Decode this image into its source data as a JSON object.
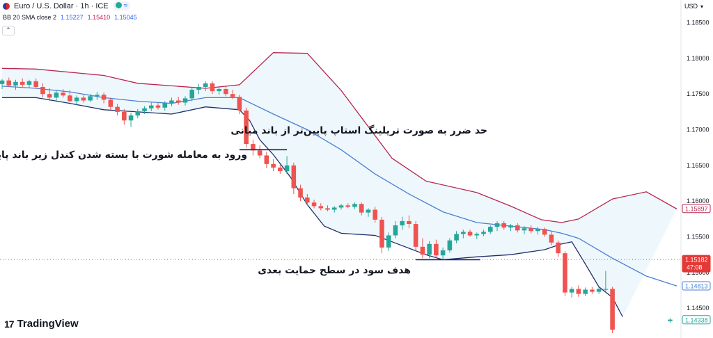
{
  "header": {
    "symbol_title": "Euro / U.S. Dollar · 1h · ICE",
    "indicator_label": "BB 20 SMA close 2",
    "indicator_values": [
      "1.15227",
      "1.15410",
      "1.15045"
    ]
  },
  "currency_label": "USD",
  "brand": "TradingView",
  "colors": {
    "upper_band": "#b8264f",
    "basis": "#4a7fd4",
    "lower_band": "#1f2f6b",
    "band_fill": "#eef7fb",
    "bull": "#26a69a",
    "bear": "#ef5350"
  },
  "annotations": {
    "stop_note": "حد ضرر به صورت تریلینگ استاپ پایین‌تر از باند میانی",
    "entry_note": "ورود به معامله شورت با بسته شدن کندل زیر باند پایینی",
    "target_note": "هدف سود در سطح حمایت بعدی"
  },
  "chart_data": {
    "type": "candlestick",
    "y_axis_ticks": [
      "1.18500",
      "1.18000",
      "1.17500",
      "1.17000",
      "1.16500",
      "1.16000",
      "1.15500",
      "1.15000",
      "1.14500"
    ],
    "ylim": [
      1.1418,
      1.1872
    ],
    "price_tags": [
      {
        "label": "1.15897",
        "value": 1.15897,
        "style": "upper"
      },
      {
        "label": "1.15182",
        "sublabel": "47:08",
        "value": 1.15182,
        "style": "current"
      },
      {
        "label": "1.14813",
        "value": 1.14813,
        "style": "basis"
      },
      {
        "label": "1.14338",
        "value": 1.14338,
        "style": "last"
      }
    ],
    "current_price_line": 1.15182,
    "entry_level": 1.1672,
    "target_level": 1.1518,
    "bands": {
      "upper": [
        [
          0,
          1.1786
        ],
        [
          10,
          1.1785
        ],
        [
          30,
          1.1776
        ],
        [
          40,
          1.1765
        ],
        [
          60,
          1.1758
        ],
        [
          70,
          1.1763
        ],
        [
          80,
          1.1808
        ],
        [
          90,
          1.1807
        ],
        [
          100,
          1.1755
        ],
        [
          115,
          1.166
        ],
        [
          125,
          1.1628
        ],
        [
          140,
          1.1612
        ],
        [
          150,
          1.1593
        ],
        [
          159,
          1.1574
        ],
        [
          165,
          1.157
        ],
        [
          170,
          1.1575
        ],
        [
          180,
          1.1603
        ],
        [
          190,
          1.1613
        ],
        [
          199,
          1.1589
        ]
      ],
      "basis": [
        [
          0,
          1.1761
        ],
        [
          10,
          1.1758
        ],
        [
          20,
          1.1753
        ],
        [
          30,
          1.1745
        ],
        [
          40,
          1.174
        ],
        [
          50,
          1.1737
        ],
        [
          60,
          1.1745
        ],
        [
          70,
          1.1745
        ],
        [
          80,
          1.1722
        ],
        [
          90,
          1.17
        ],
        [
          100,
          1.1672
        ],
        [
          110,
          1.1638
        ],
        [
          120,
          1.161
        ],
        [
          130,
          1.1585
        ],
        [
          140,
          1.157
        ],
        [
          150,
          1.1565
        ],
        [
          160,
          1.156
        ],
        [
          165,
          1.1555
        ],
        [
          170,
          1.1548
        ],
        [
          180,
          1.152
        ],
        [
          190,
          1.1495
        ],
        [
          199,
          1.1481
        ]
      ],
      "lower": [
        [
          0,
          1.1745
        ],
        [
          10,
          1.1745
        ],
        [
          20,
          1.1737
        ],
        [
          30,
          1.1728
        ],
        [
          40,
          1.1725
        ],
        [
          50,
          1.1722
        ],
        [
          60,
          1.1732
        ],
        [
          70,
          1.1728
        ],
        [
          73,
          1.1713
        ],
        [
          76,
          1.1686
        ],
        [
          80,
          1.1665
        ],
        [
          85,
          1.1634
        ],
        [
          90,
          1.1595
        ],
        [
          95,
          1.1565
        ],
        [
          100,
          1.1555
        ],
        [
          110,
          1.1552
        ],
        [
          115,
          1.1543
        ],
        [
          125,
          1.1525
        ],
        [
          130,
          1.1518
        ],
        [
          140,
          1.1522
        ],
        [
          150,
          1.1525
        ],
        [
          160,
          1.1532
        ],
        [
          165,
          1.154
        ],
        [
          168,
          1.1543
        ],
        [
          172,
          1.1512
        ],
        [
          176,
          1.148
        ],
        [
          180,
          1.1465
        ],
        [
          183,
          1.1438
        ]
      ]
    },
    "candles": [
      {
        "i": 0,
        "o": 1.1764,
        "h": 1.1771,
        "l": 1.1757,
        "c": 1.1769
      },
      {
        "i": 2,
        "o": 1.1769,
        "h": 1.1773,
        "l": 1.176,
        "c": 1.1762
      },
      {
        "i": 4,
        "o": 1.1762,
        "h": 1.177,
        "l": 1.1756,
        "c": 1.1767
      },
      {
        "i": 6,
        "o": 1.1767,
        "h": 1.1772,
        "l": 1.176,
        "c": 1.1763
      },
      {
        "i": 8,
        "o": 1.1763,
        "h": 1.177,
        "l": 1.1759,
        "c": 1.1768
      },
      {
        "i": 10,
        "o": 1.1768,
        "h": 1.1772,
        "l": 1.1758,
        "c": 1.176
      },
      {
        "i": 12,
        "o": 1.176,
        "h": 1.1765,
        "l": 1.1745,
        "c": 1.175
      },
      {
        "i": 14,
        "o": 1.175,
        "h": 1.1758,
        "l": 1.174,
        "c": 1.1745
      },
      {
        "i": 16,
        "o": 1.1745,
        "h": 1.1755,
        "l": 1.174,
        "c": 1.1752
      },
      {
        "i": 18,
        "o": 1.1752,
        "h": 1.1757,
        "l": 1.1745,
        "c": 1.1748
      },
      {
        "i": 20,
        "o": 1.1748,
        "h": 1.1756,
        "l": 1.1738,
        "c": 1.174
      },
      {
        "i": 22,
        "o": 1.174,
        "h": 1.1748,
        "l": 1.1734,
        "c": 1.1745
      },
      {
        "i": 24,
        "o": 1.1745,
        "h": 1.1748,
        "l": 1.1738,
        "c": 1.1741
      },
      {
        "i": 26,
        "o": 1.1741,
        "h": 1.175,
        "l": 1.1739,
        "c": 1.1747
      },
      {
        "i": 28,
        "o": 1.1747,
        "h": 1.1753,
        "l": 1.1742,
        "c": 1.1749
      },
      {
        "i": 30,
        "o": 1.1749,
        "h": 1.1752,
        "l": 1.1737,
        "c": 1.1742
      },
      {
        "i": 32,
        "o": 1.1742,
        "h": 1.1745,
        "l": 1.1728,
        "c": 1.1732
      },
      {
        "i": 34,
        "o": 1.1732,
        "h": 1.1736,
        "l": 1.172,
        "c": 1.1725
      },
      {
        "i": 36,
        "o": 1.1725,
        "h": 1.1729,
        "l": 1.1707,
        "c": 1.1713
      },
      {
        "i": 38,
        "o": 1.1713,
        "h": 1.1724,
        "l": 1.1704,
        "c": 1.172
      },
      {
        "i": 40,
        "o": 1.172,
        "h": 1.1729,
        "l": 1.1716,
        "c": 1.1726
      },
      {
        "i": 42,
        "o": 1.1726,
        "h": 1.1733,
        "l": 1.1722,
        "c": 1.173
      },
      {
        "i": 44,
        "o": 1.173,
        "h": 1.1738,
        "l": 1.1726,
        "c": 1.1734
      },
      {
        "i": 46,
        "o": 1.1734,
        "h": 1.1738,
        "l": 1.1728,
        "c": 1.1731
      },
      {
        "i": 48,
        "o": 1.1731,
        "h": 1.174,
        "l": 1.1727,
        "c": 1.1737
      },
      {
        "i": 50,
        "o": 1.1737,
        "h": 1.1745,
        "l": 1.1733,
        "c": 1.1741
      },
      {
        "i": 52,
        "o": 1.1741,
        "h": 1.1746,
        "l": 1.1735,
        "c": 1.1738
      },
      {
        "i": 54,
        "o": 1.1738,
        "h": 1.1747,
        "l": 1.1734,
        "c": 1.1744
      },
      {
        "i": 56,
        "o": 1.1744,
        "h": 1.176,
        "l": 1.174,
        "c": 1.1756
      },
      {
        "i": 58,
        "o": 1.1756,
        "h": 1.1764,
        "l": 1.175,
        "c": 1.176
      },
      {
        "i": 60,
        "o": 1.176,
        "h": 1.1768,
        "l": 1.1754,
        "c": 1.1765
      },
      {
        "i": 62,
        "o": 1.1765,
        "h": 1.1768,
        "l": 1.175,
        "c": 1.1754
      },
      {
        "i": 64,
        "o": 1.1754,
        "h": 1.176,
        "l": 1.1749,
        "c": 1.1757
      },
      {
        "i": 66,
        "o": 1.1757,
        "h": 1.1761,
        "l": 1.1747,
        "c": 1.175
      },
      {
        "i": 68,
        "o": 1.175,
        "h": 1.1756,
        "l": 1.1743,
        "c": 1.1746
      },
      {
        "i": 70,
        "o": 1.1746,
        "h": 1.1749,
        "l": 1.1722,
        "c": 1.1727
      },
      {
        "i": 72,
        "o": 1.1727,
        "h": 1.1731,
        "l": 1.1675,
        "c": 1.168
      },
      {
        "i": 74,
        "o": 1.168,
        "h": 1.1686,
        "l": 1.1664,
        "c": 1.1671
      },
      {
        "i": 76,
        "o": 1.1671,
        "h": 1.1678,
        "l": 1.166,
        "c": 1.1664
      },
      {
        "i": 78,
        "o": 1.1664,
        "h": 1.1669,
        "l": 1.1646,
        "c": 1.1652
      },
      {
        "i": 80,
        "o": 1.1652,
        "h": 1.1659,
        "l": 1.1642,
        "c": 1.1647
      },
      {
        "i": 82,
        "o": 1.1647,
        "h": 1.1651,
        "l": 1.1638,
        "c": 1.1642
      },
      {
        "i": 84,
        "o": 1.1642,
        "h": 1.1663,
        "l": 1.1638,
        "c": 1.165
      },
      {
        "i": 86,
        "o": 1.165,
        "h": 1.1654,
        "l": 1.161,
        "c": 1.1618
      },
      {
        "i": 88,
        "o": 1.1618,
        "h": 1.1623,
        "l": 1.16,
        "c": 1.1605
      },
      {
        "i": 90,
        "o": 1.1605,
        "h": 1.161,
        "l": 1.1594,
        "c": 1.1598
      },
      {
        "i": 92,
        "o": 1.1598,
        "h": 1.1602,
        "l": 1.159,
        "c": 1.1593
      },
      {
        "i": 94,
        "o": 1.1593,
        "h": 1.1597,
        "l": 1.1587,
        "c": 1.159
      },
      {
        "i": 96,
        "o": 1.159,
        "h": 1.1594,
        "l": 1.1586,
        "c": 1.1588
      },
      {
        "i": 98,
        "o": 1.1588,
        "h": 1.1593,
        "l": 1.1584,
        "c": 1.1591
      },
      {
        "i": 100,
        "o": 1.1591,
        "h": 1.1596,
        "l": 1.1588,
        "c": 1.1594
      },
      {
        "i": 102,
        "o": 1.1594,
        "h": 1.1597,
        "l": 1.159,
        "c": 1.1592
      },
      {
        "i": 104,
        "o": 1.1592,
        "h": 1.1598,
        "l": 1.1589,
        "c": 1.1596
      },
      {
        "i": 106,
        "o": 1.1596,
        "h": 1.1598,
        "l": 1.158,
        "c": 1.1584
      },
      {
        "i": 108,
        "o": 1.1584,
        "h": 1.159,
        "l": 1.1578,
        "c": 1.1588
      },
      {
        "i": 110,
        "o": 1.1588,
        "h": 1.1592,
        "l": 1.157,
        "c": 1.1574
      },
      {
        "i": 112,
        "o": 1.1574,
        "h": 1.1578,
        "l": 1.1527,
        "c": 1.1535
      },
      {
        "i": 114,
        "o": 1.1535,
        "h": 1.1556,
        "l": 1.153,
        "c": 1.1552
      },
      {
        "i": 116,
        "o": 1.1552,
        "h": 1.1572,
        "l": 1.1548,
        "c": 1.1566
      },
      {
        "i": 118,
        "o": 1.1566,
        "h": 1.1578,
        "l": 1.156,
        "c": 1.1572
      },
      {
        "i": 120,
        "o": 1.1572,
        "h": 1.158,
        "l": 1.1562,
        "c": 1.1568
      },
      {
        "i": 122,
        "o": 1.1568,
        "h": 1.1572,
        "l": 1.153,
        "c": 1.1536
      },
      {
        "i": 124,
        "o": 1.1536,
        "h": 1.1548,
        "l": 1.152,
        "c": 1.1525
      },
      {
        "i": 126,
        "o": 1.1525,
        "h": 1.1544,
        "l": 1.152,
        "c": 1.154
      },
      {
        "i": 128,
        "o": 1.154,
        "h": 1.1546,
        "l": 1.152,
        "c": 1.1524
      },
      {
        "i": 130,
        "o": 1.1524,
        "h": 1.1535,
        "l": 1.1519,
        "c": 1.1531
      },
      {
        "i": 132,
        "o": 1.1531,
        "h": 1.1548,
        "l": 1.1528,
        "c": 1.1545
      },
      {
        "i": 134,
        "o": 1.1545,
        "h": 1.1558,
        "l": 1.1541,
        "c": 1.1554
      },
      {
        "i": 136,
        "o": 1.1554,
        "h": 1.156,
        "l": 1.1548,
        "c": 1.1557
      },
      {
        "i": 138,
        "o": 1.1557,
        "h": 1.156,
        "l": 1.155,
        "c": 1.1552
      },
      {
        "i": 140,
        "o": 1.1552,
        "h": 1.1556,
        "l": 1.1547,
        "c": 1.1554
      },
      {
        "i": 142,
        "o": 1.1554,
        "h": 1.156,
        "l": 1.1551,
        "c": 1.1557
      },
      {
        "i": 144,
        "o": 1.1557,
        "h": 1.1566,
        "l": 1.1554,
        "c": 1.1564
      },
      {
        "i": 146,
        "o": 1.1564,
        "h": 1.1572,
        "l": 1.1558,
        "c": 1.1569
      },
      {
        "i": 148,
        "o": 1.1569,
        "h": 1.1572,
        "l": 1.156,
        "c": 1.1563
      },
      {
        "i": 150,
        "o": 1.1563,
        "h": 1.1568,
        "l": 1.1558,
        "c": 1.1566
      },
      {
        "i": 152,
        "o": 1.1566,
        "h": 1.1569,
        "l": 1.1556,
        "c": 1.1559
      },
      {
        "i": 154,
        "o": 1.1559,
        "h": 1.1565,
        "l": 1.1554,
        "c": 1.1562
      },
      {
        "i": 156,
        "o": 1.1562,
        "h": 1.1566,
        "l": 1.1555,
        "c": 1.1558
      },
      {
        "i": 158,
        "o": 1.1558,
        "h": 1.1564,
        "l": 1.1553,
        "c": 1.1561
      },
      {
        "i": 160,
        "o": 1.1561,
        "h": 1.1563,
        "l": 1.155,
        "c": 1.1553
      },
      {
        "i": 162,
        "o": 1.1553,
        "h": 1.1557,
        "l": 1.1538,
        "c": 1.1542
      },
      {
        "i": 164,
        "o": 1.1542,
        "h": 1.1545,
        "l": 1.1522,
        "c": 1.1527
      },
      {
        "i": 166,
        "o": 1.1527,
        "h": 1.153,
        "l": 1.1467,
        "c": 1.1472
      },
      {
        "i": 168,
        "o": 1.1472,
        "h": 1.148,
        "l": 1.1465,
        "c": 1.1477
      },
      {
        "i": 170,
        "o": 1.1477,
        "h": 1.1482,
        "l": 1.1466,
        "c": 1.147
      },
      {
        "i": 172,
        "o": 1.147,
        "h": 1.1479,
        "l": 1.1467,
        "c": 1.1476
      },
      {
        "i": 174,
        "o": 1.1476,
        "h": 1.148,
        "l": 1.147,
        "c": 1.1473
      },
      {
        "i": 176,
        "o": 1.1473,
        "h": 1.148,
        "l": 1.147,
        "c": 1.1477
      },
      {
        "i": 178,
        "o": 1.1477,
        "h": 1.1502,
        "l": 1.1474,
        "c": 1.1477
      },
      {
        "i": 180,
        "o": 1.1477,
        "h": 1.148,
        "l": 1.1415,
        "c": 1.142
      },
      {
        "i": 197,
        "o": 1.1432,
        "h": 1.1436,
        "l": 1.143,
        "c": 1.1434
      }
    ]
  }
}
